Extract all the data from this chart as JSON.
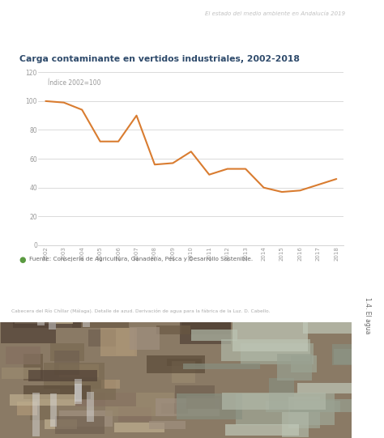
{
  "title": "Carga contaminante en vertidos industriales, 2002-2018",
  "header_text": "El estado del medio ambiente en Andalucía 2019",
  "index_label": "Índice 2002=100",
  "source_text": "Fuente: Consejería de Agricultura, Ganadería, Pesca y Desarrollo Sostenible.",
  "photo_caption": "Cabecera del Río Chíllar (Málaga). Detalle de azud. Derivación de agua para la fábrica de la Luz. D. Cabello.",
  "years": [
    2002,
    2003,
    2004,
    2005,
    2006,
    2007,
    2008,
    2009,
    2010,
    2011,
    2012,
    2013,
    2014,
    2015,
    2016,
    2017,
    2018
  ],
  "values": [
    100,
    99,
    94,
    72,
    72,
    90,
    56,
    57,
    65,
    49,
    53,
    53,
    40,
    37,
    38,
    42,
    46
  ],
  "line_color": "#d97c30",
  "background_color": "#ffffff",
  "ylim": [
    0,
    120
  ],
  "yticks": [
    0,
    20,
    40,
    60,
    80,
    100,
    120
  ],
  "title_color": "#2e4a6b",
  "header_color": "#b0b0b0",
  "source_color": "#666666",
  "axis_color": "#cccccc",
  "tick_color": "#999999",
  "sidebar_color": "#d0d0d0",
  "sidebar_text": "1.4. El agua",
  "sidebar_text_color": "#666666",
  "photo_colors": [
    "#7a6a55",
    "#9a8060",
    "#6a7060",
    "#b0a090",
    "#808878"
  ],
  "source_icon_color": "#5a9a40"
}
